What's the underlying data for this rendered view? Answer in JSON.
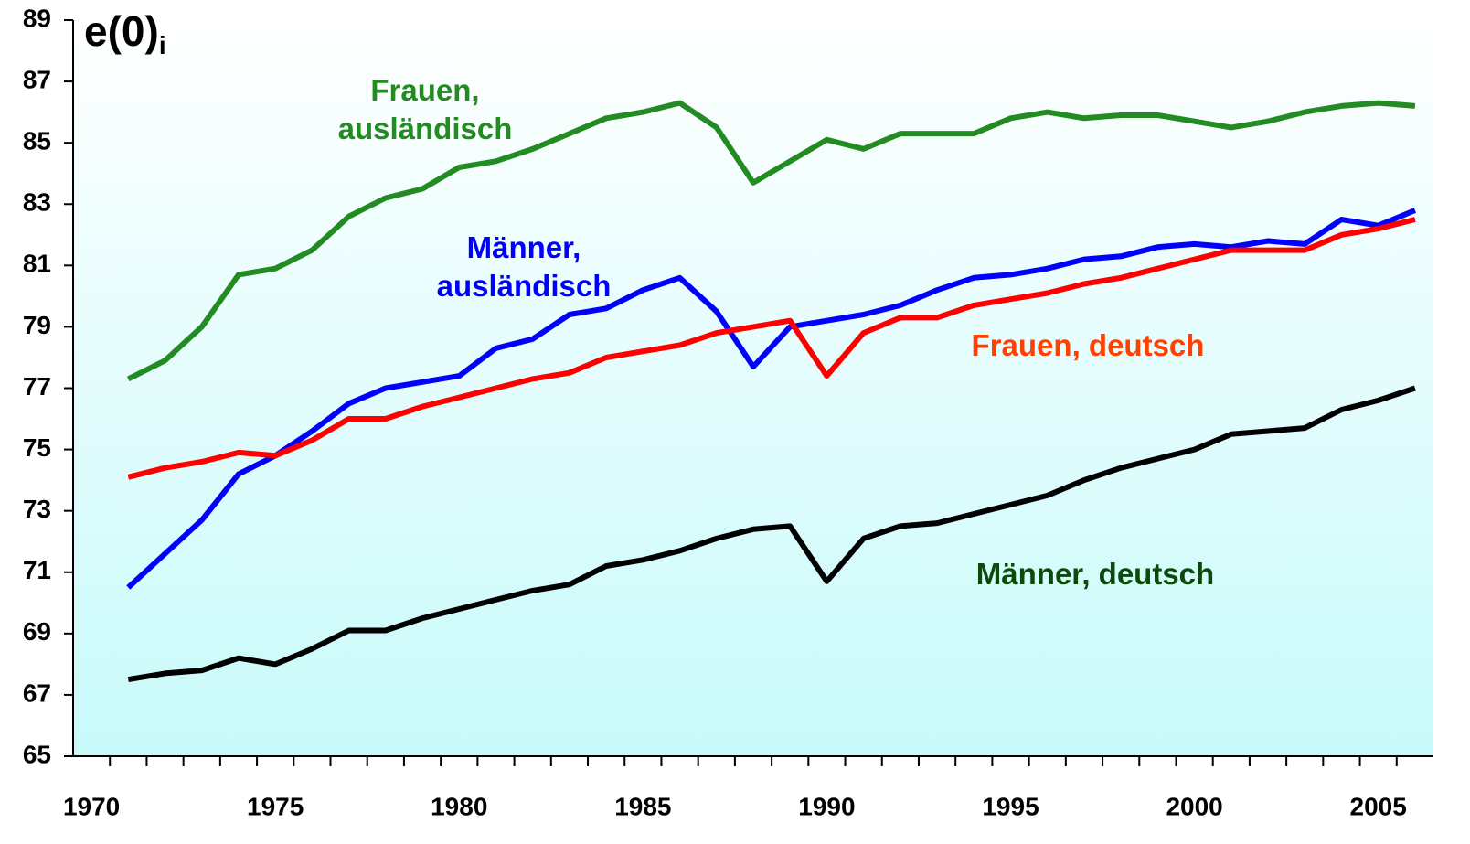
{
  "chart_data": {
    "type": "line",
    "title": "e(0)",
    "title_subscript": "i",
    "categories": [
      "1970",
      null,
      null,
      null,
      null,
      "1975",
      null,
      null,
      null,
      null,
      "1980",
      null,
      null,
      null,
      null,
      "1985",
      null,
      null,
      null,
      null,
      "1990",
      null,
      null,
      null,
      null,
      "1995",
      null,
      null,
      null,
      null,
      "2000",
      null,
      null,
      null,
      null,
      "2005",
      null
    ],
    "series": [
      {
        "name": "Frauen, ausländisch",
        "color": "#228b22",
        "label_color": "#228b22",
        "values": [
          null,
          77.3,
          77.9,
          79.0,
          80.7,
          80.9,
          81.5,
          82.6,
          83.2,
          83.5,
          84.2,
          84.4,
          84.8,
          85.3,
          85.8,
          86.0,
          86.3,
          85.5,
          83.7,
          84.4,
          85.1,
          84.8,
          85.3,
          85.3,
          85.3,
          85.8,
          86.0,
          85.8,
          85.9,
          85.9,
          85.7,
          85.5,
          85.7,
          86.0,
          86.2,
          86.3,
          86.2
        ]
      },
      {
        "name": "Männer, ausländisch",
        "color": "#0000ff",
        "label_color": "#0000ff",
        "values": [
          null,
          70.5,
          71.6,
          72.7,
          74.2,
          74.8,
          75.6,
          76.5,
          77.0,
          77.2,
          77.4,
          78.3,
          78.6,
          79.4,
          79.6,
          80.2,
          80.6,
          79.5,
          77.7,
          79.0,
          79.2,
          79.4,
          79.7,
          80.2,
          80.6,
          80.7,
          80.9,
          81.2,
          81.3,
          81.6,
          81.7,
          81.6,
          81.8,
          81.7,
          82.5,
          82.3,
          82.8
        ]
      },
      {
        "name": "Frauen, deutsch",
        "color": "#ff0000",
        "label_color": "#ff4000",
        "values": [
          null,
          74.1,
          74.4,
          74.6,
          74.9,
          74.8,
          75.3,
          76.0,
          76.0,
          76.4,
          76.7,
          77.0,
          77.3,
          77.5,
          78.0,
          78.2,
          78.4,
          78.8,
          79.0,
          79.2,
          77.4,
          78.8,
          79.3,
          79.3,
          79.7,
          79.9,
          80.1,
          80.4,
          80.6,
          80.9,
          81.2,
          81.5,
          81.5,
          81.5,
          82.0,
          82.2,
          82.5
        ]
      },
      {
        "name": "Männer, deutsch",
        "color": "#000000",
        "label_color": "#0b4a0b",
        "values": [
          null,
          67.5,
          67.7,
          67.8,
          68.2,
          68.0,
          68.5,
          69.1,
          69.1,
          69.5,
          69.8,
          70.1,
          70.4,
          70.6,
          71.2,
          71.4,
          71.7,
          72.1,
          72.4,
          72.5,
          70.7,
          72.1,
          72.5,
          72.6,
          72.9,
          73.2,
          73.5,
          74.0,
          74.4,
          74.7,
          75.0,
          75.5,
          75.6,
          75.7,
          76.3,
          76.6,
          77.0
        ]
      }
    ],
    "ylim": [
      65,
      89
    ],
    "yticks": [
      65,
      67,
      69,
      71,
      73,
      75,
      77,
      79,
      81,
      83,
      85,
      87,
      89
    ]
  }
}
